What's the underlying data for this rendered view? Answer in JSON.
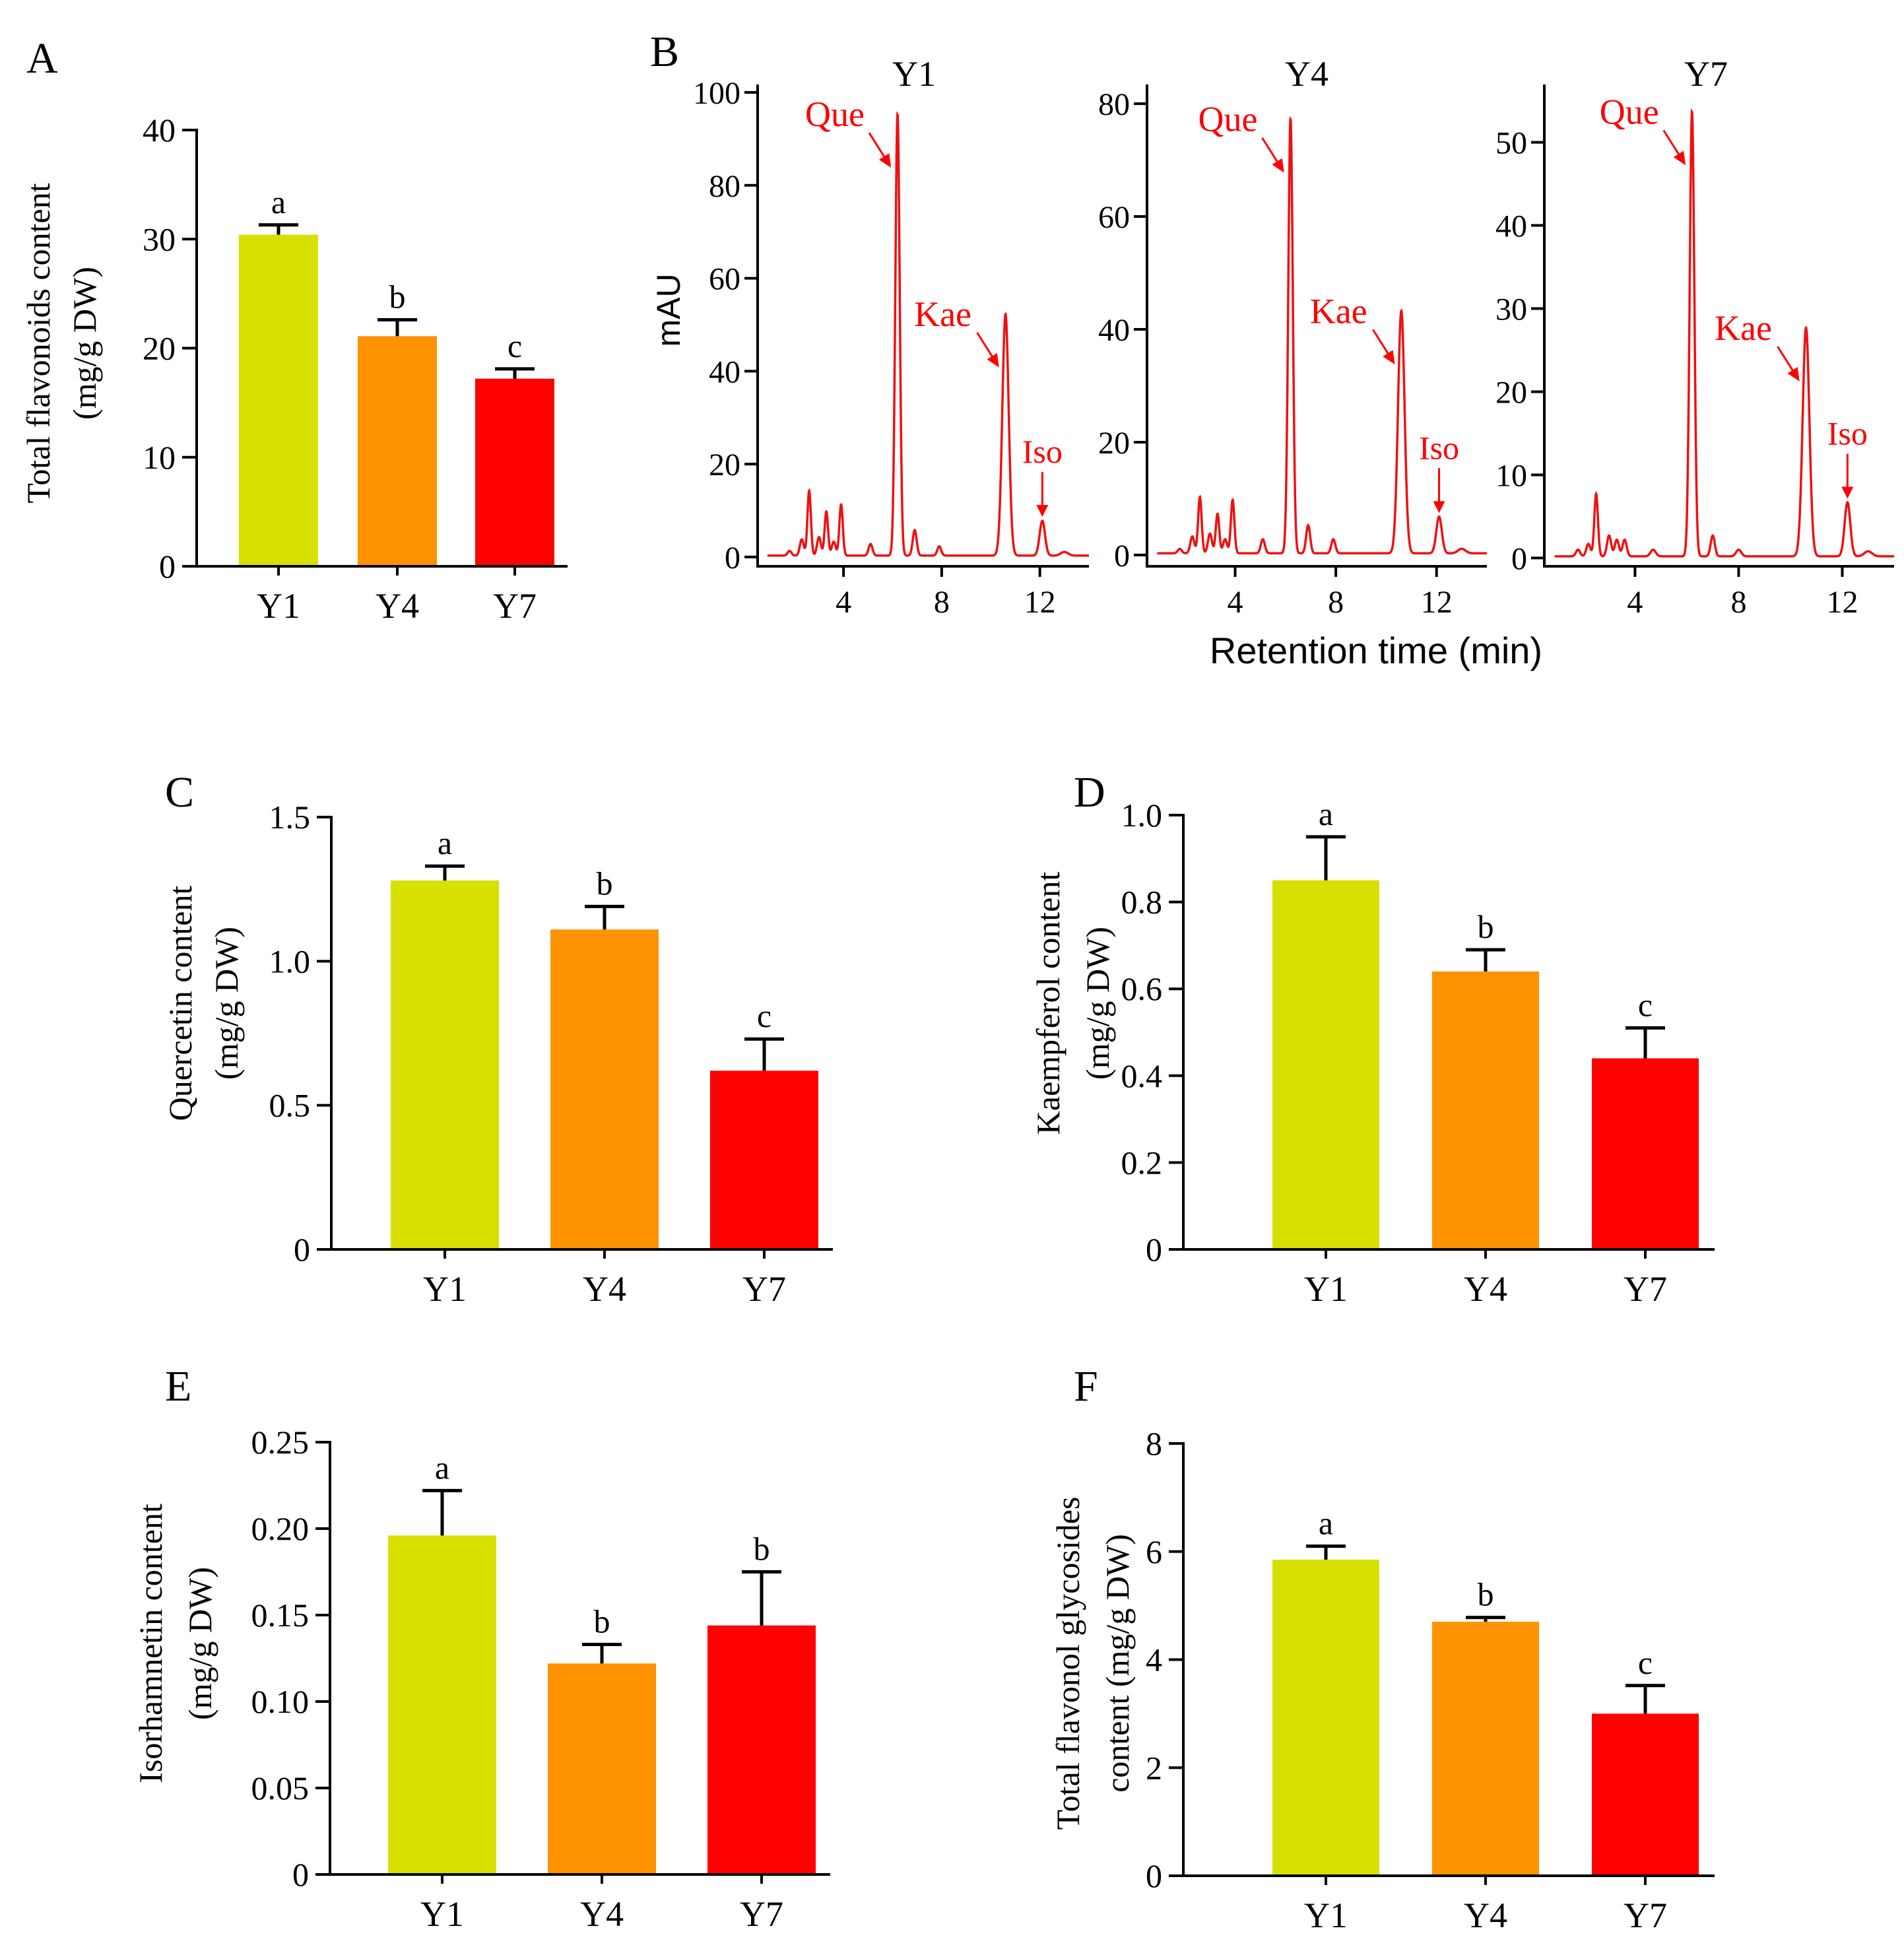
{
  "colors": {
    "Y1": "#d7e000",
    "Y4": "#ff9200",
    "Y7": "#ff0000",
    "trace": "#ee1111",
    "axis": "#000000",
    "annotation": "#ff0000"
  },
  "chromatogram_shared": {
    "xlabel": "Retention time (min)",
    "ylabel": "mAU"
  },
  "chart_data": [
    {
      "id": "A",
      "panel_label": "A",
      "type": "bar",
      "ylabel_lines": [
        "Total flavonoids content",
        "(mg/g DW)"
      ],
      "categories": [
        "Y1",
        "Y4",
        "Y7"
      ],
      "values": [
        30.4,
        21.1,
        17.2
      ],
      "errors": [
        0.9,
        1.5,
        0.9
      ],
      "letters": [
        "a",
        "b",
        "c"
      ],
      "ylim": [
        0,
        40
      ],
      "ticks": [
        0,
        10,
        20,
        30,
        40
      ],
      "tick_labels": [
        "0",
        "10",
        "20",
        "30",
        "40"
      ]
    },
    {
      "id": "B1",
      "panel_label": "B",
      "type": "line",
      "title": "Y1",
      "xlim": [
        0.5,
        14
      ],
      "ylim": [
        -2,
        100
      ],
      "xticks": [
        4,
        8,
        12
      ],
      "xtick_labels": [
        "4",
        "8",
        "12"
      ],
      "yticks": [
        0,
        20,
        40,
        60,
        80,
        100
      ],
      "ytick_labels": [
        "0",
        "20",
        "40",
        "60",
        "80",
        "100"
      ],
      "baseline": 0.3,
      "peaks": [
        [
          1.8,
          1,
          0.08
        ],
        [
          2.3,
          3.5,
          0.08
        ],
        [
          2.6,
          14,
          0.07
        ],
        [
          3.0,
          4,
          0.08
        ],
        [
          3.3,
          9.5,
          0.07
        ],
        [
          3.6,
          3,
          0.08
        ],
        [
          3.9,
          11,
          0.07
        ],
        [
          5.1,
          2.5,
          0.08
        ],
        [
          6.2,
          95,
          0.09
        ],
        [
          6.9,
          5.5,
          0.08
        ],
        [
          7.9,
          2,
          0.08
        ],
        [
          10.6,
          52,
          0.13
        ],
        [
          12.1,
          7.5,
          0.11
        ],
        [
          13.0,
          0.8,
          0.15
        ]
      ],
      "annotations": [
        {
          "text": "Que",
          "x": 6.2,
          "y": 95
        },
        {
          "text": "Kae",
          "x": 10.6,
          "y": 52
        },
        {
          "text": "Iso",
          "x": 12.1,
          "y": 7.5
        }
      ]
    },
    {
      "id": "B2",
      "panel_label": "",
      "type": "line",
      "title": "Y4",
      "xlim": [
        0.5,
        14
      ],
      "ylim": [
        -2,
        82
      ],
      "xticks": [
        4,
        8,
        12
      ],
      "xtick_labels": [
        "4",
        "8",
        "12"
      ],
      "yticks": [
        0,
        20,
        40,
        60,
        80
      ],
      "ytick_labels": [
        "0",
        "20",
        "40",
        "60",
        "80"
      ],
      "baseline": 0.3,
      "peaks": [
        [
          1.8,
          0.8,
          0.08
        ],
        [
          2.3,
          3,
          0.08
        ],
        [
          2.6,
          10,
          0.07
        ],
        [
          3.0,
          3.5,
          0.08
        ],
        [
          3.3,
          7,
          0.07
        ],
        [
          3.6,
          2.5,
          0.08
        ],
        [
          3.9,
          9.5,
          0.07
        ],
        [
          5.1,
          2.5,
          0.08
        ],
        [
          6.2,
          77,
          0.09
        ],
        [
          6.9,
          5,
          0.08
        ],
        [
          7.9,
          2.5,
          0.08
        ],
        [
          10.6,
          43,
          0.13
        ],
        [
          12.1,
          6.5,
          0.11
        ],
        [
          13.0,
          0.8,
          0.15
        ]
      ],
      "annotations": [
        {
          "text": "Que",
          "x": 6.2,
          "y": 77
        },
        {
          "text": "Kae",
          "x": 10.6,
          "y": 43
        },
        {
          "text": "Iso",
          "x": 12.1,
          "y": 6.5
        }
      ]
    },
    {
      "id": "B3",
      "panel_label": "",
      "type": "line",
      "title": "Y7",
      "xlim": [
        0.5,
        14
      ],
      "ylim": [
        -1,
        56
      ],
      "xticks": [
        4,
        8,
        12
      ],
      "xtick_labels": [
        "4",
        "8",
        "12"
      ],
      "yticks": [
        0,
        10,
        20,
        30,
        40,
        50
      ],
      "ytick_labels": [
        "0",
        "10",
        "20",
        "30",
        "40",
        "50"
      ],
      "baseline": 0.2,
      "peaks": [
        [
          1.8,
          0.8,
          0.08
        ],
        [
          2.2,
          1.5,
          0.08
        ],
        [
          2.5,
          7.5,
          0.07
        ],
        [
          3.0,
          2.5,
          0.08
        ],
        [
          3.3,
          2,
          0.08
        ],
        [
          3.6,
          2,
          0.08
        ],
        [
          4.7,
          0.8,
          0.1
        ],
        [
          6.2,
          53.5,
          0.09
        ],
        [
          7.0,
          2.5,
          0.08
        ],
        [
          8.0,
          0.8,
          0.1
        ],
        [
          10.6,
          27.5,
          0.13
        ],
        [
          12.2,
          6.5,
          0.11
        ],
        [
          13.0,
          0.6,
          0.15
        ]
      ],
      "annotations": [
        {
          "text": "Que",
          "x": 6.2,
          "y": 53.5
        },
        {
          "text": "Kae",
          "x": 10.6,
          "y": 27.5
        },
        {
          "text": "Iso",
          "x": 12.2,
          "y": 6.5
        }
      ]
    },
    {
      "id": "C",
      "panel_label": "C",
      "type": "bar",
      "ylabel_lines": [
        "Quercetin content",
        "(mg/g DW)"
      ],
      "categories": [
        "Y1",
        "Y4",
        "Y7"
      ],
      "values": [
        1.28,
        1.11,
        0.62
      ],
      "errors": [
        0.05,
        0.08,
        0.11
      ],
      "letters": [
        "a",
        "b",
        "c"
      ],
      "ylim": [
        0,
        1.5
      ],
      "ticks": [
        0,
        0.5,
        1.0,
        1.5
      ],
      "tick_labels": [
        "0",
        "0.5",
        "1.0",
        "1.5"
      ]
    },
    {
      "id": "D",
      "panel_label": "D",
      "type": "bar",
      "ylabel_lines": [
        "Kaempferol content",
        "(mg/g DW)"
      ],
      "categories": [
        "Y1",
        "Y4",
        "Y7"
      ],
      "values": [
        0.85,
        0.64,
        0.44
      ],
      "errors": [
        0.1,
        0.05,
        0.07
      ],
      "letters": [
        "a",
        "b",
        "c"
      ],
      "ylim": [
        0,
        1.0
      ],
      "ticks": [
        0,
        0.2,
        0.4,
        0.6,
        0.8,
        1.0
      ],
      "tick_labels": [
        "0",
        "0.2",
        "0.4",
        "0.6",
        "0.8",
        "1.0"
      ]
    },
    {
      "id": "E",
      "panel_label": "E",
      "type": "bar",
      "ylabel_lines": [
        "Isorhamnetin content",
        "(mg/g DW)"
      ],
      "categories": [
        "Y1",
        "Y4",
        "Y7"
      ],
      "values": [
        0.196,
        0.122,
        0.144
      ],
      "errors": [
        0.026,
        0.011,
        0.031
      ],
      "letters": [
        "a",
        "b",
        "b"
      ],
      "ylim": [
        0,
        0.25
      ],
      "ticks": [
        0,
        0.05,
        0.1,
        0.15,
        0.2,
        0.25
      ],
      "tick_labels": [
        "0",
        "0.05",
        "0.10",
        "0.15",
        "0.20",
        "0.25"
      ]
    },
    {
      "id": "F",
      "panel_label": "F",
      "type": "bar",
      "ylabel_lines": [
        "Total flavonol glycosides",
        "content (mg/g DW)"
      ],
      "categories": [
        "Y1",
        "Y4",
        "Y7"
      ],
      "values": [
        5.85,
        4.7,
        3.0
      ],
      "errors": [
        0.25,
        0.08,
        0.52
      ],
      "letters": [
        "a",
        "b",
        "c"
      ],
      "ylim": [
        0,
        8
      ],
      "ticks": [
        0,
        2,
        4,
        6,
        8
      ],
      "tick_labels": [
        "0",
        "2",
        "4",
        "6",
        "8"
      ]
    }
  ]
}
